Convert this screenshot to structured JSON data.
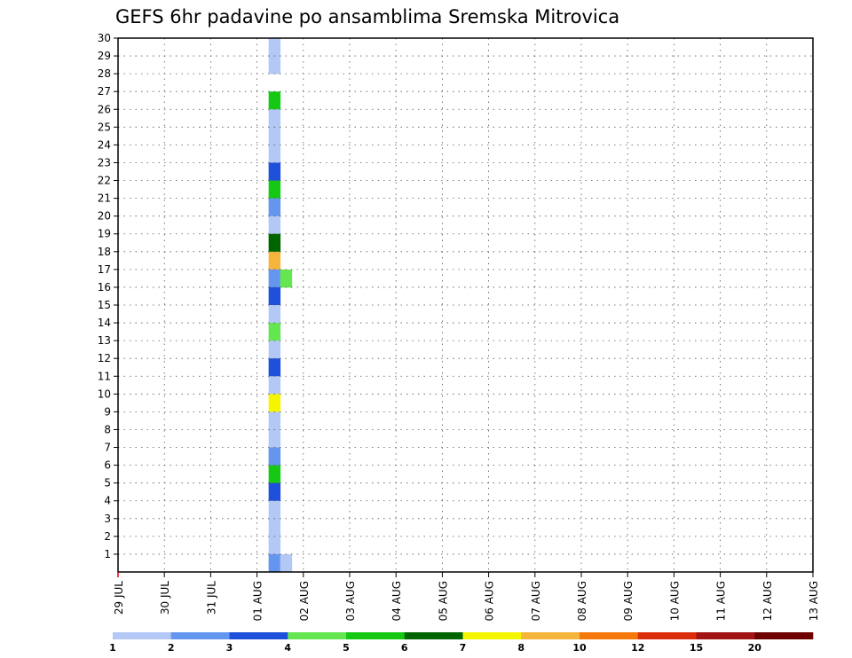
{
  "chart_data": {
    "type": "heatmap",
    "title": "GEFS 6hr padavine po ansamblima Sremska Mitrovica",
    "xlabel": "",
    "ylabel": "",
    "x_tick_labels": [
      "29 JUL",
      "30 JUL",
      "31 JUL",
      "01 AUG",
      "02 AUG",
      "03 AUG",
      "04 AUG",
      "05 AUG",
      "06 AUG",
      "07 AUG",
      "08 AUG",
      "09 AUG",
      "10 AUG",
      "11 AUG",
      "12 AUG",
      "13 AUG"
    ],
    "y_tick_labels": [
      "1",
      "2",
      "3",
      "4",
      "5",
      "6",
      "7",
      "8",
      "9",
      "10",
      "11",
      "12",
      "13",
      "14",
      "15",
      "16",
      "17",
      "18",
      "19",
      "20",
      "21",
      "22",
      "23",
      "24",
      "25",
      "26",
      "27",
      "28",
      "29",
      "30"
    ],
    "x_range_days": [
      0,
      15
    ],
    "y_range": [
      0,
      30
    ],
    "time_step_hours": 6,
    "grid": true,
    "colorbar": {
      "tick_labels": [
        "1",
        "2",
        "3",
        "4",
        "5",
        "6",
        "7",
        "8",
        "10",
        "12",
        "15",
        "20"
      ],
      "colors": [
        "#b4c8f5",
        "#6496f0",
        "#1e50dc",
        "#64e650",
        "#14c814",
        "#006400",
        "#f5f500",
        "#f5b43c",
        "#f5780a",
        "#dc2d0a",
        "#a01414",
        "#6e0000"
      ]
    },
    "cells": [
      {
        "m": 30,
        "t": [
          [
            3.25,
            1
          ]
        ]
      },
      {
        "m": 29,
        "t": [
          [
            3.25,
            1
          ]
        ]
      },
      {
        "m": 27,
        "t": [
          [
            3.25,
            5
          ]
        ]
      },
      {
        "m": 26,
        "t": [
          [
            3.25,
            1
          ]
        ]
      },
      {
        "m": 25,
        "t": [
          [
            3.25,
            1
          ]
        ]
      },
      {
        "m": 24,
        "t": [
          [
            3.25,
            1
          ]
        ]
      },
      {
        "m": 23,
        "t": [
          [
            3.25,
            3
          ]
        ]
      },
      {
        "m": 22,
        "t": [
          [
            3.25,
            5
          ]
        ]
      },
      {
        "m": 21,
        "t": [
          [
            3.25,
            2
          ]
        ]
      },
      {
        "m": 20,
        "t": [
          [
            3.25,
            1
          ]
        ]
      },
      {
        "m": 19,
        "t": [
          [
            3.25,
            6
          ]
        ]
      },
      {
        "m": 18,
        "t": [
          [
            3.25,
            8
          ]
        ]
      },
      {
        "m": 17,
        "t": [
          [
            3.25,
            2
          ],
          [
            3.5,
            4
          ]
        ]
      },
      {
        "m": 16,
        "t": [
          [
            3.25,
            3
          ]
        ]
      },
      {
        "m": 15,
        "t": [
          [
            3.25,
            1
          ]
        ]
      },
      {
        "m": 14,
        "t": [
          [
            3.25,
            4
          ]
        ]
      },
      {
        "m": 13,
        "t": [
          [
            3.25,
            1
          ]
        ]
      },
      {
        "m": 12,
        "t": [
          [
            3.25,
            3
          ]
        ]
      },
      {
        "m": 11,
        "t": [
          [
            3.25,
            1
          ]
        ]
      },
      {
        "m": 10,
        "t": [
          [
            3.25,
            7
          ]
        ]
      },
      {
        "m": 9,
        "t": [
          [
            3.25,
            1
          ]
        ]
      },
      {
        "m": 8,
        "t": [
          [
            3.25,
            1
          ]
        ]
      },
      {
        "m": 7,
        "t": [
          [
            3.25,
            2
          ]
        ]
      },
      {
        "m": 6,
        "t": [
          [
            3.25,
            5
          ]
        ]
      },
      {
        "m": 5,
        "t": [
          [
            3.25,
            3
          ]
        ]
      },
      {
        "m": 4,
        "t": [
          [
            3.25,
            1
          ]
        ]
      },
      {
        "m": 3,
        "t": [
          [
            3.25,
            1
          ]
        ]
      },
      {
        "m": 2,
        "t": [
          [
            3.25,
            1
          ]
        ]
      },
      {
        "m": 1,
        "t": [
          [
            3.25,
            2
          ],
          [
            3.5,
            1
          ]
        ]
      }
    ]
  }
}
